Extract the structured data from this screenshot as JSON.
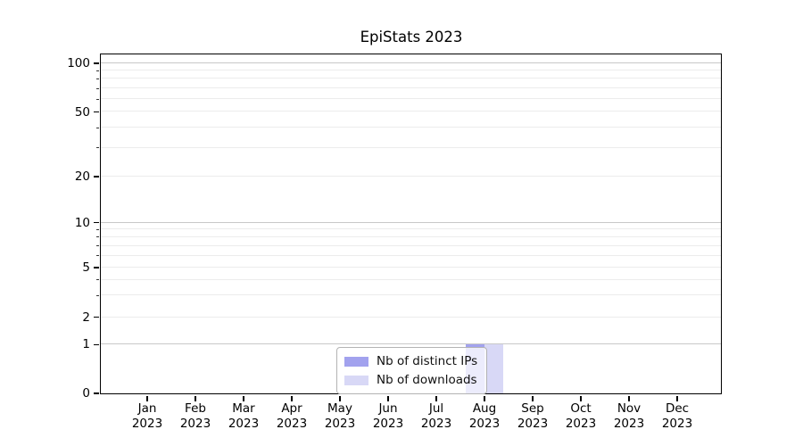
{
  "chart_data": {
    "type": "bar",
    "title": "EpiStats 2023",
    "x_categories": [
      "Jan 2023",
      "Feb 2023",
      "Mar 2023",
      "Apr 2023",
      "May 2023",
      "Jun 2023",
      "Jul 2023",
      "Aug 2023",
      "Sep 2023",
      "Oct 2023",
      "Nov 2023",
      "Dec 2023"
    ],
    "series": [
      {
        "name": "Nb of distinct IPs",
        "color": "#a2a2ee",
        "values": [
          0,
          0,
          0,
          0,
          0,
          0,
          0,
          1,
          0,
          0,
          0,
          0
        ]
      },
      {
        "name": "Nb of downloads",
        "color": "#d8d8f6",
        "values": [
          0,
          0,
          0,
          0,
          0,
          0,
          0,
          1,
          0,
          0,
          0,
          0
        ]
      }
    ],
    "yscale": "symlog",
    "ylim": [
      0,
      113
    ],
    "y_major_ticks": [
      0,
      1,
      2,
      5,
      10,
      20,
      50,
      100
    ],
    "y_minor_ticks": [
      3,
      4,
      6,
      7,
      8,
      9,
      30,
      40,
      60,
      70,
      80,
      90
    ],
    "grid": {
      "major_values": [
        1,
        10,
        100
      ],
      "minor_values": [
        2,
        3,
        4,
        5,
        6,
        7,
        8,
        9,
        20,
        30,
        40,
        50,
        60,
        70,
        80,
        90
      ],
      "major_color": "#c8c8c8",
      "minor_color": "#ececec"
    },
    "legend_position": "lower center",
    "axis_color": "#000000",
    "background_color": "#ffffff"
  }
}
